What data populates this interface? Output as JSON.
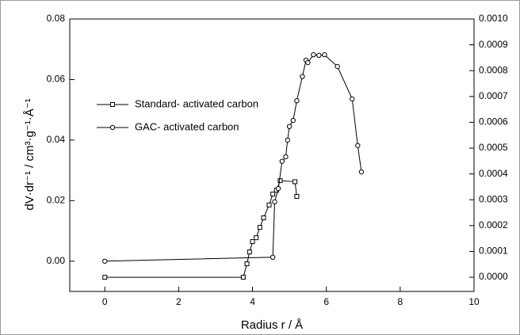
{
  "chart_data": {
    "type": "line",
    "x_label": "Radius r / Å",
    "y_label": "dV·dr⁻¹ / cm³·g⁻¹·Å⁻¹",
    "xlim": [
      -0.95,
      10
    ],
    "xticks": [
      0,
      2,
      4,
      6,
      8,
      10
    ],
    "ylim": [
      -0.01,
      0.08
    ],
    "yticks": [
      {
        "value": 0,
        "label": "0.00"
      },
      {
        "value": 0.02,
        "label": "0.02"
      },
      {
        "value": 0.04,
        "label": "0.04"
      },
      {
        "value": 0.06,
        "label": "0.06"
      },
      {
        "value": 0.08,
        "label": "0.08"
      }
    ],
    "y2lim": [
      -5.5e-05,
      0.001
    ],
    "y2ticks": [
      {
        "value": 0,
        "label": "0.0000"
      },
      {
        "value": 0.0001,
        "label": "0.0001"
      },
      {
        "value": 0.0002,
        "label": "0.0002"
      },
      {
        "value": 0.0003,
        "label": "0.0003"
      },
      {
        "value": 0.0004,
        "label": "0.0004"
      },
      {
        "value": 0.0005,
        "label": "0.0005"
      },
      {
        "value": 0.0006,
        "label": "0.0006"
      },
      {
        "value": 0.0007,
        "label": "0.0007"
      },
      {
        "value": 0.0008,
        "label": "0.0008"
      },
      {
        "value": 0.0009,
        "label": "0.0009"
      },
      {
        "value": 0.001,
        "label": "0.0010"
      }
    ],
    "series": [
      {
        "name": "Standard- activated carbon",
        "color": "#000000",
        "marker": "square",
        "axis": "y2",
        "x": [
          0,
          3.75,
          3.85,
          3.92,
          4.0,
          4.1,
          4.2,
          4.3,
          4.45,
          4.55,
          4.65,
          4.75,
          5.15,
          5.2
        ],
        "values": [
          0,
          0,
          5.2e-05,
          9.8e-05,
          0.000138,
          0.000153,
          0.000193,
          0.00023,
          0.00028,
          0.000322,
          0.000337,
          0.000374,
          0.00037,
          0.000313
        ]
      },
      {
        "name": "GAC- activated carbon",
        "color": "#000000",
        "marker": "circle",
        "x": [
          0,
          4.55,
          4.6,
          4.7,
          4.8,
          4.9,
          4.95,
          5.0,
          5.1,
          5.2,
          5.35,
          5.45,
          5.5,
          5.65,
          5.8,
          5.95,
          6.3,
          6.7,
          6.85,
          6.95
        ],
        "values": [
          0,
          0.0013,
          0.0196,
          0.024,
          0.033,
          0.0345,
          0.04,
          0.0445,
          0.0465,
          0.053,
          0.061,
          0.0664,
          0.0656,
          0.0682,
          0.068,
          0.0682,
          0.0643,
          0.0536,
          0.0382,
          0.0295
        ]
      }
    ]
  }
}
